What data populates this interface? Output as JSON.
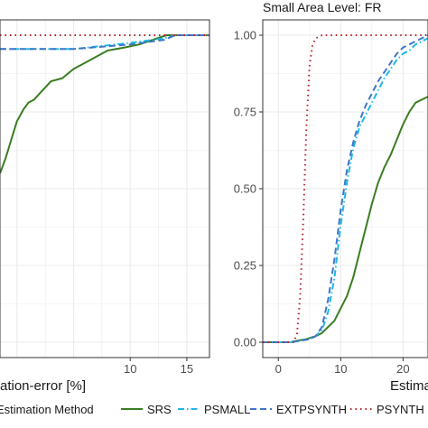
{
  "colors": {
    "SRS": "#3a7d22",
    "PSMALL": "#1fb8e6",
    "EXTPSYNTH": "#3f76c9",
    "PSYNTH": "#b3202a",
    "grid": "#ebebeb",
    "axis_text": "#4d4d4d",
    "panel_border": "#333333"
  },
  "legend": {
    "title": "Estimation Method",
    "items": [
      {
        "key": "SRS",
        "label": "SRS",
        "dash": "solid"
      },
      {
        "key": "PSMALL",
        "label": "PSMALL",
        "dash": "dotdash"
      },
      {
        "key": "EXTPSYNTH",
        "label": "EXTPSYNTH",
        "dash": "dashed"
      },
      {
        "key": "PSYNTH",
        "label": "PSYNTH",
        "dash": "dotted"
      }
    ]
  },
  "chart_data": [
    {
      "type": "line",
      "title": "",
      "xlabel": "Estimation-error [%]",
      "xlabel_visible": "ation-error [%]",
      "ylabel": "",
      "xlim": [
        -1.5,
        17
      ],
      "ylim": [
        -0.05,
        1.05
      ],
      "xticks": [
        10,
        15
      ],
      "yticks": [],
      "grid": true,
      "series": [
        {
          "name": "SRS",
          "x": [
            -1.5,
            -1.0,
            -0.5,
            0.0,
            0.3,
            0.6,
            1.0,
            1.5,
            2.0,
            2.5,
            3.0,
            4.0,
            5.0,
            6.5,
            8.0,
            9.5,
            10.8,
            13.2,
            17.0
          ],
          "y": [
            0.55,
            0.6,
            0.66,
            0.72,
            0.74,
            0.76,
            0.78,
            0.79,
            0.81,
            0.83,
            0.85,
            0.86,
            0.89,
            0.92,
            0.95,
            0.96,
            0.97,
            1.0,
            1.0
          ]
        },
        {
          "name": "PSMALL",
          "x": [
            -1.5,
            5.0,
            10.0,
            13.0,
            14.0,
            17.0
          ],
          "y": [
            0.955,
            0.955,
            0.975,
            0.99,
            1.0,
            1.0
          ]
        },
        {
          "name": "EXTPSYNTH",
          "x": [
            -1.5,
            5.0,
            10.0,
            13.0,
            14.0,
            17.0
          ],
          "y": [
            0.955,
            0.955,
            0.97,
            0.985,
            1.0,
            1.0
          ]
        },
        {
          "name": "PSYNTH",
          "x": [
            -1.5,
            17.0
          ],
          "y": [
            1.0,
            1.0
          ]
        }
      ]
    },
    {
      "type": "line",
      "title": "Small Area Level: FR",
      "xlabel": "Estimation-error [%]",
      "xlabel_visible": "Estima",
      "ylabel": "",
      "xlim": [
        -2.5,
        24
      ],
      "ylim": [
        -0.05,
        1.05
      ],
      "xticks": [
        0,
        10,
        20
      ],
      "yticks": [
        "0.00",
        "0.25",
        "0.50",
        "0.75",
        "1.00"
      ],
      "grid": true,
      "series": [
        {
          "name": "SRS",
          "x": [
            -2.5,
            2.0,
            3.0,
            4.5,
            6.0,
            7.0,
            8.0,
            9.0,
            10.0,
            11.0,
            12.0,
            13.0,
            14.0,
            15.0,
            16.0,
            17.0,
            18.0,
            19.0,
            20.0,
            21.0,
            22.0,
            23.0,
            24.0
          ],
          "y": [
            0.0,
            0.0,
            0.005,
            0.01,
            0.02,
            0.03,
            0.05,
            0.07,
            0.11,
            0.15,
            0.21,
            0.29,
            0.37,
            0.45,
            0.52,
            0.57,
            0.61,
            0.66,
            0.71,
            0.75,
            0.78,
            0.79,
            0.8
          ]
        },
        {
          "name": "PSMALL",
          "x": [
            -2.5,
            2.0,
            3.5,
            5.0,
            6.0,
            7.0,
            8.0,
            9.0,
            10.0,
            11.0,
            12.0,
            13.0,
            14.0,
            15.0,
            16.0,
            17.0,
            18.0,
            19.0,
            20.0,
            21.0,
            22.0,
            23.0,
            24.0
          ],
          "y": [
            0.0,
            0.0,
            0.005,
            0.01,
            0.02,
            0.04,
            0.1,
            0.21,
            0.38,
            0.52,
            0.63,
            0.7,
            0.74,
            0.78,
            0.82,
            0.86,
            0.89,
            0.92,
            0.94,
            0.95,
            0.97,
            0.98,
            0.99
          ]
        },
        {
          "name": "EXTPSYNTH",
          "x": [
            -2.5,
            2.0,
            3.5,
            5.0,
            6.0,
            7.0,
            8.0,
            9.0,
            10.0,
            11.0,
            12.0,
            13.0,
            14.0,
            15.0,
            16.0,
            17.0,
            18.0,
            19.0,
            20.0,
            21.0,
            22.0,
            23.0,
            24.0
          ],
          "y": [
            0.0,
            0.0,
            0.005,
            0.01,
            0.02,
            0.05,
            0.14,
            0.27,
            0.43,
            0.56,
            0.65,
            0.72,
            0.77,
            0.81,
            0.85,
            0.88,
            0.91,
            0.94,
            0.96,
            0.97,
            0.98,
            0.99,
            1.0
          ]
        },
        {
          "name": "PSYNTH",
          "x": [
            -2.5,
            2.5,
            3.0,
            3.5,
            4.0,
            4.5,
            5.0,
            5.5,
            6.0,
            7.0,
            10.0,
            24.0
          ],
          "y": [
            0.0,
            0.0,
            0.03,
            0.15,
            0.4,
            0.7,
            0.9,
            0.97,
            0.99,
            1.0,
            1.0,
            1.0
          ]
        }
      ]
    }
  ]
}
